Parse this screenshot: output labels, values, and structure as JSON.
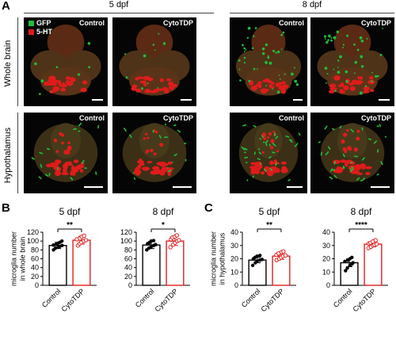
{
  "panels": {
    "a": "A",
    "b": "B",
    "c": "C"
  },
  "panelA": {
    "time_5": "5 dpf",
    "time_8": "8 dpf",
    "row_whole": "Whole brain",
    "row_hypo": "Hypothalamus",
    "legend": [
      {
        "label": "GFP",
        "color": "#1fbf3a"
      },
      {
        "label": "5-HT",
        "color": "#e01b1b"
      }
    ],
    "images": [
      {
        "label": "Control"
      },
      {
        "label": "CytoTDP"
      },
      {
        "label": "Control"
      },
      {
        "label": "CytoTDP"
      },
      {
        "label": "Control"
      },
      {
        "label": "CytoTDP"
      },
      {
        "label": "Control"
      },
      {
        "label": "CytoTDP"
      }
    ]
  },
  "colors": {
    "control": "#000000",
    "cytotdp": "#e02020",
    "green": "#1fbf3a",
    "red": "#e01b1b"
  },
  "chart_data": [
    {
      "type": "bar",
      "panel": "B",
      "title": "5 dpf",
      "ylabel": "microglia number\nin whole brain",
      "categories": [
        "Control",
        "CytoTDP"
      ],
      "values": [
        90,
        102
      ],
      "error": [
        7,
        9
      ],
      "points": [
        [
          80,
          84,
          86,
          88,
          90,
          91,
          93,
          95,
          97,
          100
        ],
        [
          90,
          94,
          97,
          100,
          102,
          104,
          106,
          110,
          112
        ]
      ],
      "significance": "**",
      "ylim": [
        0,
        120
      ],
      "yticks": [
        0,
        20,
        40,
        60,
        80,
        100,
        120
      ]
    },
    {
      "type": "bar",
      "panel": "B",
      "title": "8 dpf",
      "ylabel": "",
      "categories": [
        "Control",
        "CytoTDP"
      ],
      "values": [
        91,
        100
      ],
      "error": [
        8,
        10
      ],
      "points": [
        [
          80,
          84,
          87,
          90,
          92,
          94,
          96,
          100,
          101
        ],
        [
          86,
          92,
          96,
          100,
          102,
          104,
          108,
          110,
          113
        ]
      ],
      "significance": "*",
      "ylim": [
        0,
        120
      ],
      "yticks": [
        0,
        20,
        40,
        60,
        80,
        100,
        120
      ]
    },
    {
      "type": "bar",
      "panel": "C",
      "title": "5 dpf",
      "ylabel": "microglia number\nin hypothalamus",
      "categories": [
        "Control",
        "CytoTDP"
      ],
      "values": [
        19,
        22
      ],
      "error": [
        2,
        2.5
      ],
      "points": [
        [
          15,
          17,
          18,
          19,
          19.5,
          20,
          21,
          22,
          22.5
        ],
        [
          19,
          20,
          21,
          22,
          22.5,
          23,
          24,
          25,
          25.5
        ]
      ],
      "significance": "**",
      "ylim": [
        0,
        40
      ],
      "yticks": [
        0,
        10,
        20,
        30,
        40
      ]
    },
    {
      "type": "bar",
      "panel": "C",
      "title": "8 dpf",
      "ylabel": "",
      "categories": [
        "Control",
        "CytoTDP"
      ],
      "values": [
        17,
        31
      ],
      "error": [
        3,
        2
      ],
      "points": [
        [
          11,
          13,
          15,
          16,
          17,
          18,
          19,
          20,
          21
        ],
        [
          28,
          29,
          30,
          30.5,
          31,
          31.5,
          32,
          33,
          34
        ]
      ],
      "significance": "****",
      "ylim": [
        0,
        40
      ],
      "yticks": [
        0,
        10,
        20,
        30,
        40
      ]
    }
  ]
}
